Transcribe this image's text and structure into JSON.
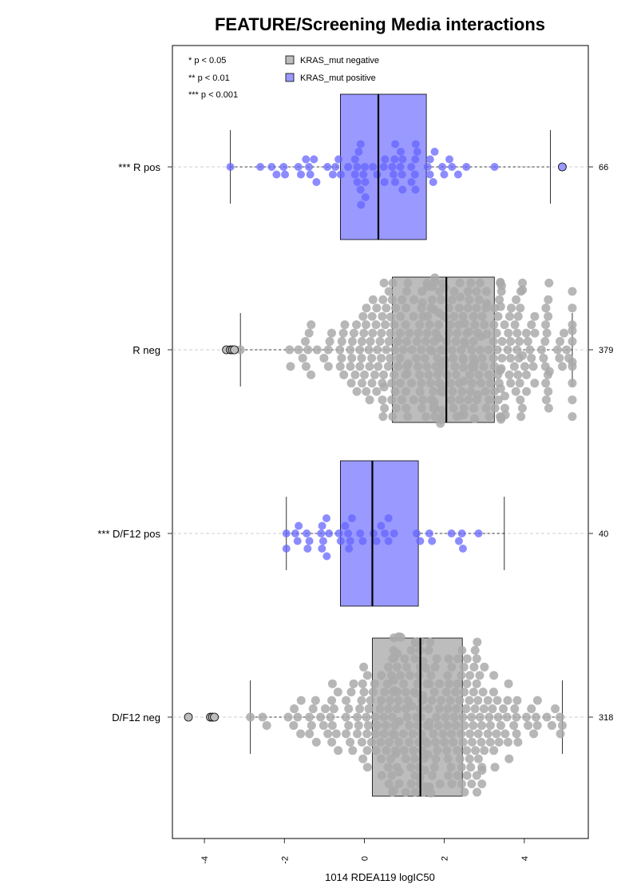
{
  "chart_data": {
    "type": "boxplot-beeswarm",
    "title": "FEATURE/Screening Media interactions",
    "xlabel": "1014 RDEA119 logIC50",
    "ylabel": "",
    "xlim": [
      -4.8,
      5.6
    ],
    "x_ticks": [
      -4,
      -2,
      0,
      2,
      4
    ],
    "x_tick_labels": [
      "-4",
      "-2",
      "0",
      "2",
      "4"
    ],
    "significance_legend": [
      "* p < 0.05",
      "** p < 0.01",
      "*** p < 0.001"
    ],
    "legend": [
      {
        "label": "KRAS_mut negative",
        "color": "#bdbdbd"
      },
      {
        "label": "KRAS_mut positive",
        "color": "#9999ff"
      }
    ],
    "colors": {
      "negative_box": "#bdbdbd",
      "positive_box": "#9999ff",
      "negative_points": "#aaaaaa",
      "positive_points": "#6666ff",
      "gridline": "#cccccc"
    },
    "groups": [
      {
        "label": "*** R pos",
        "n": "66",
        "kras": "positive",
        "whisker_low": -3.35,
        "q1": -0.6,
        "median": 0.35,
        "q3": 1.55,
        "whisker_high": 4.65,
        "outliers": [
          4.95
        ]
      },
      {
        "label": "R neg",
        "n": "379",
        "kras": "negative",
        "whisker_low": -3.1,
        "q1": 0.7,
        "median": 2.05,
        "q3": 3.25,
        "whisker_high": 5.2,
        "outliers": [
          -3.45,
          -3.35,
          -3.3,
          -3.25
        ]
      },
      {
        "label": "*** D/F12 pos",
        "n": "40",
        "kras": "positive",
        "whisker_low": -1.95,
        "q1": -0.6,
        "median": 0.2,
        "q3": 1.35,
        "whisker_high": 3.5,
        "outliers": []
      },
      {
        "label": "D/F12 neg",
        "n": "318",
        "kras": "negative",
        "whisker_low": -2.85,
        "q1": 0.2,
        "median": 1.4,
        "q3": 2.45,
        "whisker_high": 4.95,
        "outliers": [
          -4.4,
          -3.85,
          -3.8,
          -3.75
        ]
      }
    ]
  }
}
